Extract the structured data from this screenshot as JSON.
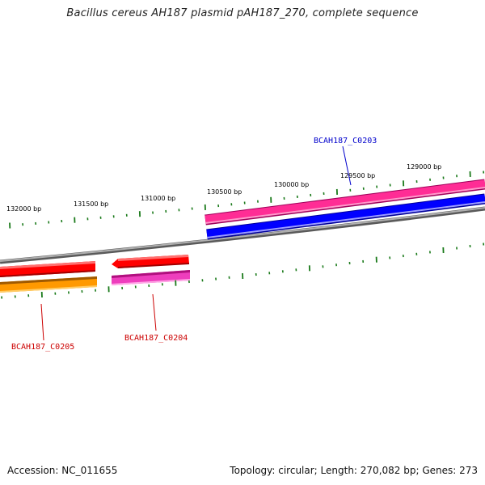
{
  "title": "Bacillus cereus AH187 plasmid pAH187_270, complete sequence",
  "ticks": [
    {
      "label": "132000 bp"
    },
    {
      "label": "131500 bp"
    },
    {
      "label": "131000 bp"
    },
    {
      "label": "130500 bp"
    },
    {
      "label": "130000 bp"
    },
    {
      "label": "129500 bp"
    },
    {
      "label": "129000 bp"
    }
  ],
  "genes": [
    {
      "name": "BCAH187_C0203",
      "color": "#0000cc"
    },
    {
      "name": "BCAH187_C0204",
      "color": "#cc0000"
    },
    {
      "name": "BCAH187_C0205",
      "color": "#cc0000"
    }
  ],
  "colors": {
    "backbone": "#808080",
    "tick": "#1a7a1a",
    "forward_cds": "#ff1493",
    "forward_gene": "#0000ff",
    "reverse_cds": "#ff0000",
    "reverse_gene": "#ee3ebd",
    "reverse_gene_left": "#ff9900"
  },
  "footer": {
    "accession": "Accession: NC_011655",
    "summary": "Topology: circular; Length: 270,082 bp; Genes: 273"
  }
}
